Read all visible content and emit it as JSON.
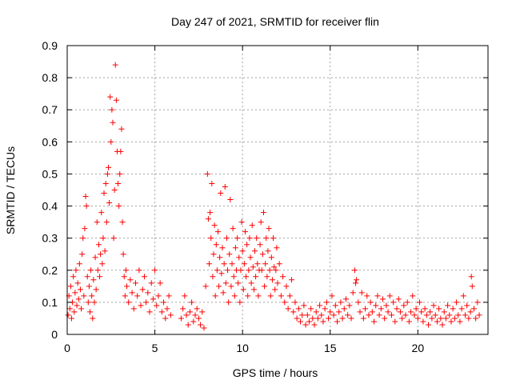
{
  "chart_data": {
    "type": "scatter",
    "title": "Day 247 of 2021, SRMTID for receiver flin",
    "xlabel": "GPS time / hours",
    "ylabel": "SRMTID / TECUs",
    "xlim": [
      0,
      24
    ],
    "ylim": [
      0,
      0.9
    ],
    "xticks": [
      0,
      5,
      10,
      15,
      20
    ],
    "yticks": [
      0,
      0.1,
      0.2,
      0.3,
      0.4,
      0.5,
      0.6,
      0.7,
      0.8,
      0.9
    ],
    "xtick_labels": [
      "0",
      "5",
      "10",
      "15",
      "20"
    ],
    "ytick_labels": [
      "0",
      "0.1",
      "0.2",
      "0.3",
      "0.4",
      "0.5",
      "0.6",
      "0.7",
      "0.8",
      "0.9"
    ],
    "grid": true,
    "marker": "+",
    "color": "#ff0000",
    "series": [
      {
        "name": "SRMTID",
        "points": [
          [
            0.05,
            0.06
          ],
          [
            0.1,
            0.12
          ],
          [
            0.15,
            0.08
          ],
          [
            0.2,
            0.15
          ],
          [
            0.25,
            0.05
          ],
          [
            0.3,
            0.1
          ],
          [
            0.35,
            0.18
          ],
          [
            0.4,
            0.07
          ],
          [
            0.45,
            0.13
          ],
          [
            0.5,
            0.2
          ],
          [
            0.55,
            0.09
          ],
          [
            0.6,
            0.16
          ],
          [
            0.65,
            0.11
          ],
          [
            0.7,
            0.22
          ],
          [
            0.75,
            0.14
          ],
          [
            0.8,
            0.08
          ],
          [
            0.85,
            0.25
          ],
          [
            0.9,
            0.3
          ],
          [
            0.95,
            0.12
          ],
          [
            1.0,
            0.33
          ],
          [
            1.05,
            0.43
          ],
          [
            1.1,
            0.4
          ],
          [
            1.15,
            0.18
          ],
          [
            1.2,
            0.1
          ],
          [
            1.25,
            0.15
          ],
          [
            1.3,
            0.07
          ],
          [
            1.35,
            0.2
          ],
          [
            1.4,
            0.12
          ],
          [
            1.45,
            0.05
          ],
          [
            1.5,
            0.17
          ],
          [
            1.55,
            0.1
          ],
          [
            1.6,
            0.24
          ],
          [
            1.65,
            0.14
          ],
          [
            1.7,
            0.35
          ],
          [
            1.75,
            0.2
          ],
          [
            1.8,
            0.28
          ],
          [
            1.85,
            0.18
          ],
          [
            1.9,
            0.25
          ],
          [
            1.95,
            0.38
          ],
          [
            2.0,
            0.22
          ],
          [
            2.05,
            0.3
          ],
          [
            2.1,
            0.44
          ],
          [
            2.15,
            0.26
          ],
          [
            2.2,
            0.47
          ],
          [
            2.25,
            0.35
          ],
          [
            2.3,
            0.5
          ],
          [
            2.35,
            0.52
          ],
          [
            2.4,
            0.41
          ],
          [
            2.45,
            0.74
          ],
          [
            2.5,
            0.6
          ],
          [
            2.55,
            0.7
          ],
          [
            2.6,
            0.66
          ],
          [
            2.65,
            0.3
          ],
          [
            2.7,
            0.45
          ],
          [
            2.75,
            0.84
          ],
          [
            2.8,
            0.73
          ],
          [
            2.85,
            0.57
          ],
          [
            2.9,
            0.47
          ],
          [
            2.95,
            0.4
          ],
          [
            3.0,
            0.5
          ],
          [
            3.05,
            0.57
          ],
          [
            3.1,
            0.64
          ],
          [
            3.15,
            0.35
          ],
          [
            3.2,
            0.25
          ],
          [
            3.25,
            0.18
          ],
          [
            3.3,
            0.12
          ],
          [
            3.35,
            0.2
          ],
          [
            3.4,
            0.15
          ],
          [
            3.5,
            0.1
          ],
          [
            3.6,
            0.17
          ],
          [
            3.7,
            0.13
          ],
          [
            3.8,
            0.08
          ],
          [
            3.9,
            0.16
          ],
          [
            4.0,
            0.12
          ],
          [
            4.1,
            0.2
          ],
          [
            4.2,
            0.09
          ],
          [
            4.3,
            0.14
          ],
          [
            4.4,
            0.18
          ],
          [
            4.5,
            0.1
          ],
          [
            4.6,
            0.13
          ],
          [
            4.7,
            0.07
          ],
          [
            4.8,
            0.16
          ],
          [
            4.9,
            0.11
          ],
          [
            5.0,
            0.2
          ],
          [
            5.1,
            0.09
          ],
          [
            5.2,
            0.12
          ],
          [
            5.3,
            0.16
          ],
          [
            5.4,
            0.07
          ],
          [
            5.5,
            0.1
          ],
          [
            5.6,
            0.05
          ],
          [
            5.7,
            0.08
          ],
          [
            5.8,
            0.12
          ],
          [
            5.9,
            0.06
          ],
          [
            6.5,
            0.05
          ],
          [
            6.6,
            0.08
          ],
          [
            6.7,
            0.12
          ],
          [
            6.8,
            0.06
          ],
          [
            6.9,
            0.03
          ],
          [
            7.0,
            0.07
          ],
          [
            7.1,
            0.1
          ],
          [
            7.2,
            0.04
          ],
          [
            7.3,
            0.06
          ],
          [
            7.4,
            0.08
          ],
          [
            7.5,
            0.05
          ],
          [
            7.6,
            0.03
          ],
          [
            7.7,
            0.07
          ],
          [
            7.8,
            0.02
          ],
          [
            7.9,
            0.15
          ],
          [
            8.0,
            0.5
          ],
          [
            8.05,
            0.36
          ],
          [
            8.1,
            0.22
          ],
          [
            8.15,
            0.38
          ],
          [
            8.2,
            0.3
          ],
          [
            8.25,
            0.47
          ],
          [
            8.3,
            0.18
          ],
          [
            8.35,
            0.25
          ],
          [
            8.4,
            0.34
          ],
          [
            8.45,
            0.12
          ],
          [
            8.5,
            0.28
          ],
          [
            8.55,
            0.2
          ],
          [
            8.6,
            0.32
          ],
          [
            8.65,
            0.15
          ],
          [
            8.7,
            0.24
          ],
          [
            8.75,
            0.44
          ],
          [
            8.8,
            0.19
          ],
          [
            8.85,
            0.27
          ],
          [
            8.9,
            0.13
          ],
          [
            8.95,
            0.22
          ],
          [
            9.0,
            0.46
          ],
          [
            9.05,
            0.16
          ],
          [
            9.1,
            0.3
          ],
          [
            9.15,
            0.2
          ],
          [
            9.2,
            0.1
          ],
          [
            9.25,
            0.25
          ],
          [
            9.3,
            0.42
          ],
          [
            9.35,
            0.15
          ],
          [
            9.4,
            0.22
          ],
          [
            9.45,
            0.33
          ],
          [
            9.5,
            0.18
          ],
          [
            9.55,
            0.12
          ],
          [
            9.6,
            0.27
          ],
          [
            9.65,
            0.2
          ],
          [
            9.7,
            0.3
          ],
          [
            9.75,
            0.16
          ],
          [
            9.8,
            0.24
          ],
          [
            9.85,
            0.1
          ],
          [
            9.9,
            0.2
          ],
          [
            9.95,
            0.35
          ],
          [
            10.0,
            0.26
          ],
          [
            10.05,
            0.14
          ],
          [
            10.1,
            0.22
          ],
          [
            10.15,
            0.32
          ],
          [
            10.2,
            0.18
          ],
          [
            10.25,
            0.28
          ],
          [
            10.3,
            0.12
          ],
          [
            10.35,
            0.2
          ],
          [
            10.4,
            0.3
          ],
          [
            10.45,
            0.24
          ],
          [
            10.5,
            0.16
          ],
          [
            10.55,
            0.34
          ],
          [
            10.6,
            0.21
          ],
          [
            10.65,
            0.14
          ],
          [
            10.7,
            0.26
          ],
          [
            10.75,
            0.18
          ],
          [
            10.8,
            0.3
          ],
          [
            10.85,
            0.22
          ],
          [
            10.9,
            0.12
          ],
          [
            10.95,
            0.2
          ],
          [
            11.0,
            0.28
          ],
          [
            11.05,
            0.35
          ],
          [
            11.1,
            0.2
          ],
          [
            11.15,
            0.25
          ],
          [
            11.2,
            0.38
          ],
          [
            11.25,
            0.15
          ],
          [
            11.3,
            0.22
          ],
          [
            11.35,
            0.3
          ],
          [
            11.4,
            0.18
          ],
          [
            11.45,
            0.26
          ],
          [
            11.5,
            0.33
          ],
          [
            11.55,
            0.2
          ],
          [
            11.6,
            0.12
          ],
          [
            11.65,
            0.24
          ],
          [
            11.7,
            0.17
          ],
          [
            11.75,
            0.3
          ],
          [
            11.8,
            0.21
          ],
          [
            11.85,
            0.14
          ],
          [
            11.9,
            0.2
          ],
          [
            11.95,
            0.27
          ],
          [
            12.0,
            0.16
          ],
          [
            12.1,
            0.22
          ],
          [
            12.2,
            0.12
          ],
          [
            12.3,
            0.18
          ],
          [
            12.4,
            0.1
          ],
          [
            12.5,
            0.15
          ],
          [
            12.6,
            0.08
          ],
          [
            12.7,
            0.12
          ],
          [
            12.8,
            0.17
          ],
          [
            12.9,
            0.07
          ],
          [
            13.0,
            0.1
          ],
          [
            13.1,
            0.05
          ],
          [
            13.2,
            0.08
          ],
          [
            13.3,
            0.04
          ],
          [
            13.4,
            0.06
          ],
          [
            13.5,
            0.09
          ],
          [
            13.6,
            0.03
          ],
          [
            13.7,
            0.06
          ],
          [
            13.8,
            0.04
          ],
          [
            13.9,
            0.08
          ],
          [
            14.0,
            0.05
          ],
          [
            14.1,
            0.03
          ],
          [
            14.2,
            0.07
          ],
          [
            14.3,
            0.05
          ],
          [
            14.4,
            0.09
          ],
          [
            14.5,
            0.06
          ],
          [
            14.6,
            0.04
          ],
          [
            14.7,
            0.08
          ],
          [
            14.8,
            0.1
          ],
          [
            14.9,
            0.05
          ],
          [
            15.0,
            0.07
          ],
          [
            15.1,
            0.12
          ],
          [
            15.2,
            0.06
          ],
          [
            15.3,
            0.09
          ],
          [
            15.4,
            0.04
          ],
          [
            15.5,
            0.07
          ],
          [
            15.6,
            0.1
          ],
          [
            15.7,
            0.05
          ],
          [
            15.8,
            0.08
          ],
          [
            15.9,
            0.11
          ],
          [
            16.0,
            0.06
          ],
          [
            16.1,
            0.09
          ],
          [
            16.2,
            0.05
          ],
          [
            16.3,
            0.13
          ],
          [
            16.4,
            0.2
          ],
          [
            16.45,
            0.16
          ],
          [
            16.5,
            0.17
          ],
          [
            16.6,
            0.1
          ],
          [
            16.7,
            0.07
          ],
          [
            16.8,
            0.13
          ],
          [
            16.9,
            0.05
          ],
          [
            17.0,
            0.08
          ],
          [
            17.1,
            0.12
          ],
          [
            17.2,
            0.06
          ],
          [
            17.3,
            0.1
          ],
          [
            17.4,
            0.07
          ],
          [
            17.5,
            0.04
          ],
          [
            17.6,
            0.09
          ],
          [
            17.7,
            0.12
          ],
          [
            17.8,
            0.06
          ],
          [
            17.9,
            0.08
          ],
          [
            18.0,
            0.11
          ],
          [
            18.1,
            0.05
          ],
          [
            18.2,
            0.09
          ],
          [
            18.3,
            0.07
          ],
          [
            18.4,
            0.12
          ],
          [
            18.5,
            0.06
          ],
          [
            18.6,
            0.1
          ],
          [
            18.7,
            0.04
          ],
          [
            18.8,
            0.08
          ],
          [
            18.9,
            0.11
          ],
          [
            19.0,
            0.07
          ],
          [
            19.1,
            0.05
          ],
          [
            19.2,
            0.09
          ],
          [
            19.3,
            0.06
          ],
          [
            19.4,
            0.1
          ],
          [
            19.5,
            0.04
          ],
          [
            19.6,
            0.07
          ],
          [
            19.7,
            0.12
          ],
          [
            19.8,
            0.06
          ],
          [
            19.9,
            0.08
          ],
          [
            20.0,
            0.05
          ],
          [
            20.1,
            0.1
          ],
          [
            20.2,
            0.07
          ],
          [
            20.3,
            0.04
          ],
          [
            20.4,
            0.08
          ],
          [
            20.5,
            0.06
          ],
          [
            20.6,
            0.03
          ],
          [
            20.7,
            0.07
          ],
          [
            20.8,
            0.05
          ],
          [
            20.9,
            0.09
          ],
          [
            21.0,
            0.06
          ],
          [
            21.1,
            0.04
          ],
          [
            21.2,
            0.08
          ],
          [
            21.3,
            0.05
          ],
          [
            21.4,
            0.03
          ],
          [
            21.5,
            0.07
          ],
          [
            21.6,
            0.05
          ],
          [
            21.7,
            0.09
          ],
          [
            21.8,
            0.06
          ],
          [
            21.9,
            0.04
          ],
          [
            22.0,
            0.08
          ],
          [
            22.1,
            0.05
          ],
          [
            22.2,
            0.1
          ],
          [
            22.3,
            0.06
          ],
          [
            22.4,
            0.04
          ],
          [
            22.5,
            0.08
          ],
          [
            22.6,
            0.12
          ],
          [
            22.7,
            0.06
          ],
          [
            22.8,
            0.09
          ],
          [
            22.9,
            0.05
          ],
          [
            23.0,
            0.07
          ],
          [
            23.05,
            0.18
          ],
          [
            23.1,
            0.15
          ],
          [
            23.2,
            0.08
          ],
          [
            23.3,
            0.05
          ],
          [
            23.4,
            0.1
          ],
          [
            23.5,
            0.06
          ]
        ]
      }
    ]
  }
}
